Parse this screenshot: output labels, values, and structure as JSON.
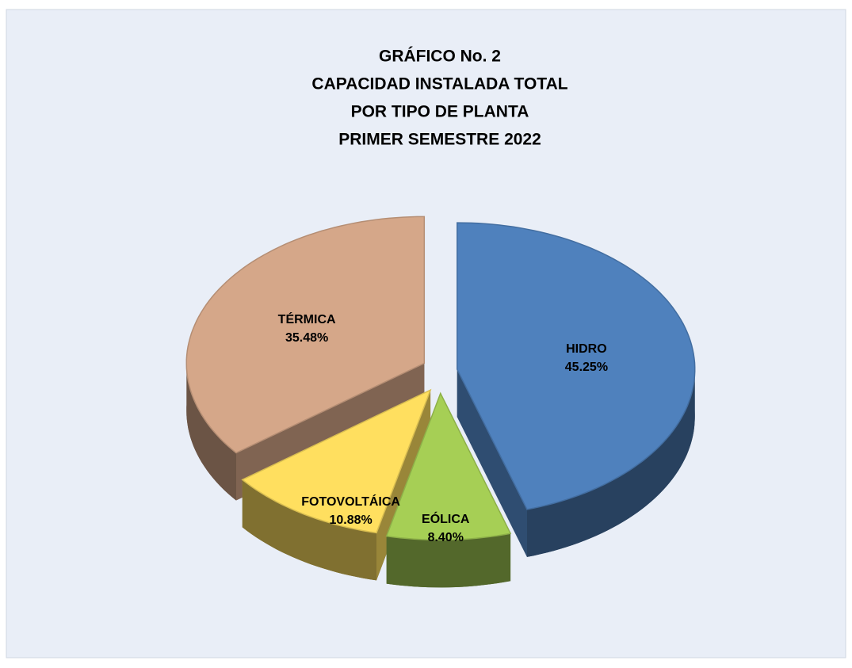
{
  "chart_data": {
    "type": "pie",
    "title": [
      "GRÁFICO No. 2",
      "CAPACIDAD INSTALADA TOTAL",
      "POR TIPO DE PLANTA",
      "PRIMER  SEMESTRE  2022"
    ],
    "categories": [
      "HIDRO",
      "EÓLICA",
      "FOTOVOLTÁICA",
      "TÉRMICA"
    ],
    "values": [
      45.25,
      8.4,
      10.88,
      35.48
    ],
    "value_labels": [
      "45.25%",
      "8.40%",
      "10.88%",
      "35.48%"
    ],
    "colors": [
      "#4f81bd",
      "#a6cf55",
      "#ffdf5f",
      "#d5a789"
    ]
  }
}
